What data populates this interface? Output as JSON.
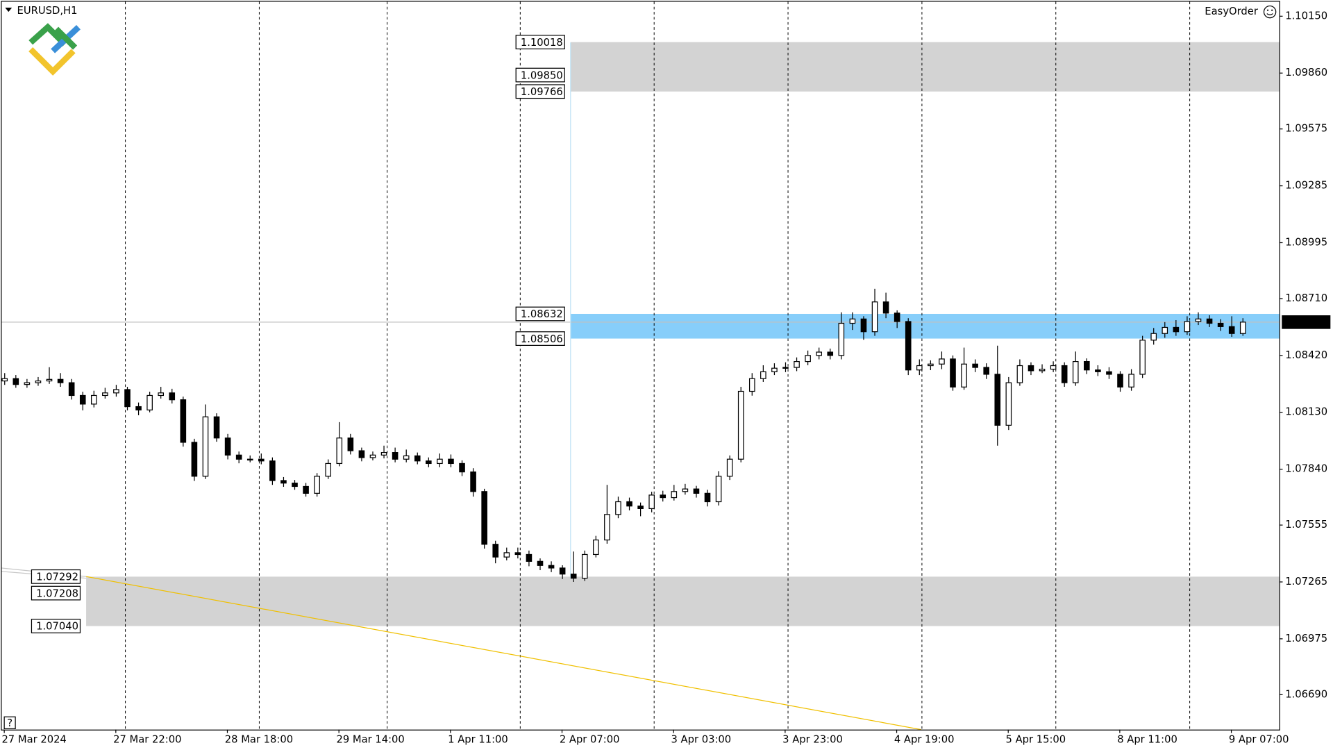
{
  "chart_data": {
    "type": "candlestick",
    "title": "EURUSD,H1",
    "tool_label": "EasyOrder",
    "help_label": "?",
    "categories": [
      "27 Mar 2024",
      null,
      null,
      null,
      null,
      null,
      null,
      null,
      null,
      null,
      "27 Mar 22:00",
      null,
      null,
      null,
      null,
      null,
      null,
      null,
      null,
      null,
      "28 Mar 18:00",
      null,
      null,
      null,
      null,
      null,
      null,
      null,
      null,
      null,
      "29 Mar 14:00",
      null,
      null,
      null,
      null,
      null,
      null,
      null,
      null,
      null,
      "1 Apr 11:00",
      null,
      null,
      null,
      null,
      null,
      null,
      null,
      null,
      null,
      "2 Apr 07:00",
      null,
      null,
      null,
      null,
      null,
      null,
      null,
      null,
      null,
      "3 Apr 03:00",
      null,
      null,
      null,
      null,
      null,
      null,
      null,
      null,
      null,
      "3 Apr 23:00",
      null,
      null,
      null,
      null,
      null,
      null,
      null,
      null,
      null,
      "4 Apr 19:00",
      null,
      null,
      null,
      null,
      null,
      null,
      null,
      null,
      null,
      "5 Apr 15:00",
      null,
      null,
      null,
      null,
      null,
      null,
      null,
      null,
      null,
      "8 Apr 11:00",
      null,
      null,
      null,
      null,
      null,
      null,
      null,
      null,
      null,
      "9 Apr 07:00",
      null
    ],
    "open": [
      1.0829,
      1.08302,
      1.08272,
      1.08281,
      1.0829,
      1.08298,
      1.08281,
      1.08216,
      1.08172,
      1.08216,
      1.08229,
      1.08246,
      1.08159,
      1.08142,
      1.08216,
      1.08229,
      1.08194,
      1.07977,
      1.07804,
      1.08107,
      1.07999,
      1.07912,
      1.07891,
      1.07891,
      1.07882,
      1.07782,
      1.07769,
      1.07752,
      1.07717,
      1.07804,
      1.07869,
      1.07999,
      1.07934,
      1.07899,
      1.07912,
      1.07925,
      1.07891,
      1.07908,
      1.07882,
      1.07869,
      1.07891,
      1.07869,
      1.07826,
      1.07726,
      1.07457,
      1.07392,
      1.07414,
      1.07405,
      1.0737,
      1.07349,
      1.07336,
      1.07305,
      1.07284,
      1.07405,
      1.07479,
      1.07609,
      1.07674,
      1.07652,
      1.07639,
      1.07708,
      1.07695,
      1.07726,
      1.07739,
      1.07717,
      1.07674,
      1.07804,
      1.07891,
      1.08237,
      1.08302,
      1.08337,
      1.08355,
      1.08359,
      1.08389,
      1.0842,
      1.08437,
      1.0842,
      1.08584,
      1.08606,
      1.08541,
      1.08693,
      1.08636,
      1.08593,
      1.08346,
      1.08368,
      1.08376,
      1.08402,
      1.08259,
      1.08376,
      1.08359,
      1.08324,
      1.08064,
      1.08281,
      1.08368,
      1.08342,
      1.0835,
      1.08368,
      1.08281,
      1.08389,
      1.08346,
      1.08337,
      1.08324,
      1.08259,
      1.08324,
      1.08498,
      1.08532,
      1.08563,
      1.08541,
      1.08593,
      1.08606,
      1.08584,
      1.08567,
      1.08532
    ],
    "high": [
      1.0833,
      1.0832,
      1.083,
      1.0831,
      1.0836,
      1.0833,
      1.083,
      1.08235,
      1.0824,
      1.08255,
      1.0827,
      1.0826,
      1.0818,
      1.08235,
      1.0826,
      1.0825,
      1.0821,
      1.07995,
      1.0817,
      1.08125,
      1.0802,
      1.0793,
      1.0791,
      1.0792,
      1.079,
      1.078,
      1.07785,
      1.0777,
      1.0782,
      1.0789,
      1.0808,
      1.0802,
      1.0795,
      1.0793,
      1.0796,
      1.0795,
      1.0794,
      1.07925,
      1.079,
      1.0792,
      1.07915,
      1.07885,
      1.07845,
      1.0774,
      1.07475,
      1.0744,
      1.0744,
      1.07425,
      1.07385,
      1.0737,
      1.0735,
      1.0742,
      1.07425,
      1.075,
      1.0776,
      1.077,
      1.07695,
      1.0767,
      1.07725,
      1.0773,
      1.0776,
      1.07765,
      1.07755,
      1.07735,
      1.0783,
      1.0791,
      1.0826,
      1.0833,
      1.0837,
      1.0838,
      1.08385,
      1.0841,
      1.08445,
      1.0846,
      1.08455,
      1.0864,
      1.0864,
      1.0862,
      1.0876,
      1.0874,
      1.0865,
      1.0861,
      1.084,
      1.08395,
      1.0844,
      1.0842,
      1.0846,
      1.084,
      1.0838,
      1.0847,
      1.0831,
      1.084,
      1.08385,
      1.08375,
      1.0839,
      1.08385,
      1.0844,
      1.08405,
      1.0837,
      1.0836,
      1.0834,
      1.0835,
      1.0852,
      1.0856,
      1.0859,
      1.086,
      1.0862,
      1.0864,
      1.08625,
      1.08605,
      1.0862,
      1.0861
    ],
    "low": [
      1.0827,
      1.08255,
      1.08255,
      1.08265,
      1.08275,
      1.0826,
      1.08195,
      1.0814,
      1.08155,
      1.082,
      1.0821,
      1.0814,
      1.08115,
      1.0813,
      1.082,
      1.08175,
      1.07955,
      1.0778,
      1.0779,
      1.0798,
      1.0789,
      1.0787,
      1.07875,
      1.07865,
      1.0776,
      1.0775,
      1.07735,
      1.077,
      1.077,
      1.0779,
      1.07855,
      1.07915,
      1.0788,
      1.07885,
      1.07895,
      1.07875,
      1.07875,
      1.07865,
      1.0785,
      1.0785,
      1.0785,
      1.07805,
      1.077,
      1.07435,
      1.0736,
      1.07375,
      1.07385,
      1.07345,
      1.07325,
      1.07315,
      1.0728,
      1.07265,
      1.0727,
      1.0739,
      1.0746,
      1.0759,
      1.0763,
      1.076,
      1.0762,
      1.07675,
      1.0768,
      1.0771,
      1.07695,
      1.0765,
      1.07655,
      1.07785,
      1.07875,
      1.08215,
      1.08285,
      1.0832,
      1.08335,
      1.0834,
      1.0837,
      1.084,
      1.084,
      1.084,
      1.0855,
      1.085,
      1.0852,
      1.0861,
      1.0856,
      1.0832,
      1.0832,
      1.08345,
      1.0835,
      1.0824,
      1.08245,
      1.08335,
      1.083,
      1.0796,
      1.0804,
      1.08265,
      1.0832,
      1.0833,
      1.08335,
      1.0826,
      1.08265,
      1.08325,
      1.08315,
      1.083,
      1.08235,
      1.0824,
      1.08305,
      1.08475,
      1.0851,
      1.0852,
      1.08525,
      1.08575,
      1.08565,
      1.08545,
      1.08515,
      1.0852
    ],
    "close": [
      1.08302,
      1.08272,
      1.08281,
      1.0829,
      1.08298,
      1.08281,
      1.08216,
      1.08172,
      1.08216,
      1.08229,
      1.08246,
      1.08159,
      1.08142,
      1.08216,
      1.08229,
      1.08194,
      1.07977,
      1.07804,
      1.08107,
      1.07999,
      1.07912,
      1.07891,
      1.07891,
      1.07882,
      1.07782,
      1.07769,
      1.07752,
      1.07717,
      1.07804,
      1.07869,
      1.07999,
      1.07934,
      1.07899,
      1.07912,
      1.07925,
      1.07891,
      1.07908,
      1.07882,
      1.07869,
      1.07891,
      1.07869,
      1.07826,
      1.07726,
      1.07457,
      1.07392,
      1.07414,
      1.07405,
      1.0737,
      1.07349,
      1.07336,
      1.07305,
      1.07284,
      1.07405,
      1.07479,
      1.07609,
      1.07674,
      1.07652,
      1.07639,
      1.07708,
      1.07695,
      1.07726,
      1.07739,
      1.07717,
      1.07674,
      1.07804,
      1.07891,
      1.08237,
      1.08302,
      1.08337,
      1.08355,
      1.08359,
      1.08389,
      1.0842,
      1.08437,
      1.0842,
      1.08584,
      1.08606,
      1.08541,
      1.08693,
      1.08636,
      1.08593,
      1.08346,
      1.08368,
      1.08376,
      1.08402,
      1.08259,
      1.08376,
      1.08359,
      1.08324,
      1.08064,
      1.08281,
      1.08368,
      1.08342,
      1.0835,
      1.08368,
      1.08281,
      1.08389,
      1.08346,
      1.08337,
      1.08324,
      1.08259,
      1.08324,
      1.08498,
      1.08532,
      1.08563,
      1.08541,
      1.08593,
      1.08606,
      1.08584,
      1.08567,
      1.08532,
      1.0859
    ],
    "ylim": [
      1.06512,
      1.10224
    ],
    "yticks": [
      {
        "value": 1.1015,
        "label": "1.10150"
      },
      {
        "value": 1.0986,
        "label": "1.09860"
      },
      1.09575,
      1.09285,
      1.08995,
      {
        "value": 1.0871,
        "label": "1.08710"
      },
      {
        "value": 1.0842,
        "label": "1.08420"
      },
      {
        "value": 1.0813,
        "label": "1.08130"
      },
      {
        "value": 1.0784,
        "label": "1.07840"
      },
      1.07555,
      1.07265,
      1.06975,
      {
        "value": 1.0669,
        "label": "1.06690"
      }
    ],
    "current_price": {
      "value": 1.0859,
      "label": "1.08590"
    },
    "zones": [
      {
        "levels": [
          1.10018,
          {
            "value": 1.0985,
            "label": "1.09850"
          },
          1.09766
        ],
        "color": "#d3d3d3"
      },
      {
        "levels": [
          1.08632,
          1.08506
        ],
        "color": "#87cefa"
      },
      {
        "levels": [
          1.07292,
          1.07208,
          {
            "value": 1.0704,
            "label": "1.07040"
          }
        ],
        "color": "#d3d3d3"
      }
    ]
  }
}
